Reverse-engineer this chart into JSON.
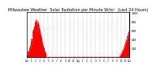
{
  "title": "Milwaukee Weather  Solar Radiation per Minute W/m²  (Last 24 Hours)",
  "title_fontsize": 3.5,
  "background_color": "#ffffff",
  "plot_bg_color": "#ffffff",
  "bar_color": "#ff0000",
  "grid_color": "#999999",
  "tick_color": "#000000",
  "ylim": [
    0,
    1000
  ],
  "yticks": [
    200,
    400,
    600,
    800,
    1000
  ],
  "ytick_labels": [
    "200",
    "400",
    "600",
    "800",
    "1000"
  ],
  "num_points": 1440,
  "x_tick_positions": [
    0,
    60,
    120,
    180,
    240,
    300,
    360,
    420,
    480,
    540,
    600,
    660,
    720,
    780,
    840,
    900,
    960,
    1020,
    1080,
    1140,
    1200,
    1260,
    1320,
    1380,
    1439
  ],
  "x_tick_labels": [
    "12a",
    "1",
    "2",
    "3",
    "4",
    "5",
    "6",
    "7",
    "8",
    "9",
    "10",
    "11",
    "12p",
    "1",
    "2",
    "3",
    "4",
    "5",
    "6",
    "7",
    "8",
    "9",
    "10",
    "11",
    "12a"
  ]
}
